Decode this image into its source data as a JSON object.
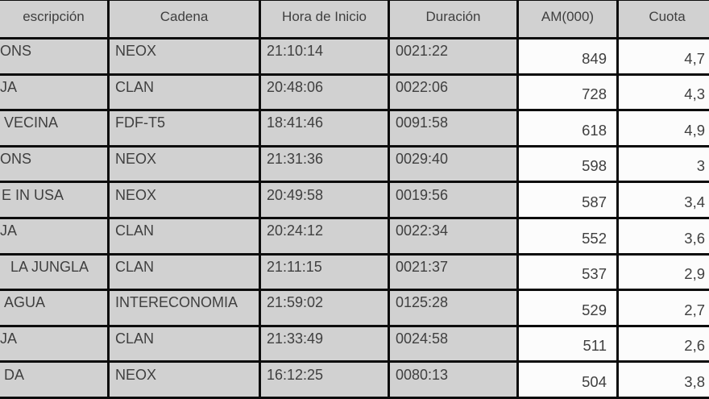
{
  "table": {
    "headers": [
      {
        "key": "descripcion",
        "label": "escripción"
      },
      {
        "key": "cadena",
        "label": "Cadena"
      },
      {
        "key": "hora_inicio",
        "label": "Hora de Inicio"
      },
      {
        "key": "duracion",
        "label": "Duración"
      },
      {
        "key": "am000",
        "label": "AM(000)"
      },
      {
        "key": "cuota",
        "label": "Cuota"
      }
    ],
    "rows": [
      {
        "descripcion": "ONS",
        "cadena": "NEOX",
        "hora_inicio": "21:10:14",
        "duracion": "0021:22",
        "am000": "849",
        "cuota": "4,7"
      },
      {
        "descripcion": "JA",
        "cadena": "CLAN",
        "hora_inicio": "20:48:06",
        "duracion": "0022:06",
        "am000": "728",
        "cuota": "4,3"
      },
      {
        "descripcion": "VECINA",
        "cadena": "FDF-T5",
        "hora_inicio": "18:41:46",
        "duracion": "0091:58",
        "am000": "618",
        "cuota": "4,9"
      },
      {
        "descripcion": "ONS",
        "cadena": "NEOX",
        "hora_inicio": "21:31:36",
        "duracion": "0029:40",
        "am000": "598",
        "cuota": "3"
      },
      {
        "descripcion": "E IN USA",
        "cadena": "NEOX",
        "hora_inicio": "20:49:58",
        "duracion": "0019:56",
        "am000": "587",
        "cuota": "3,4"
      },
      {
        "descripcion": "JA",
        "cadena": "CLAN",
        "hora_inicio": "20:24:12",
        "duracion": "0022:34",
        "am000": "552",
        "cuota": "3,6"
      },
      {
        "descripcion": "LA JUNGLA",
        "cadena": "CLAN",
        "hora_inicio": "21:11:15",
        "duracion": "0021:37",
        "am000": "537",
        "cuota": "2,9"
      },
      {
        "descripcion": "AGUA",
        "cadena": "INTERECONOMIA",
        "hora_inicio": "21:59:02",
        "duracion": "0125:28",
        "am000": "529",
        "cuota": "2,7"
      },
      {
        "descripcion": "JA",
        "cadena": "CLAN",
        "hora_inicio": "21:33:49",
        "duracion": "0024:58",
        "am000": "511",
        "cuota": "2,6"
      },
      {
        "descripcion": "DA",
        "cadena": "NEOX",
        "hora_inicio": "16:12:25",
        "duracion": "0080:13",
        "am000": "504",
        "cuota": "3,8"
      }
    ]
  },
  "colors": {
    "cell_background": "#d1d1d1",
    "value_cell_background": "#fcfcfc",
    "grid_border": "#0c0c0c",
    "text": "#3f3f3f"
  }
}
